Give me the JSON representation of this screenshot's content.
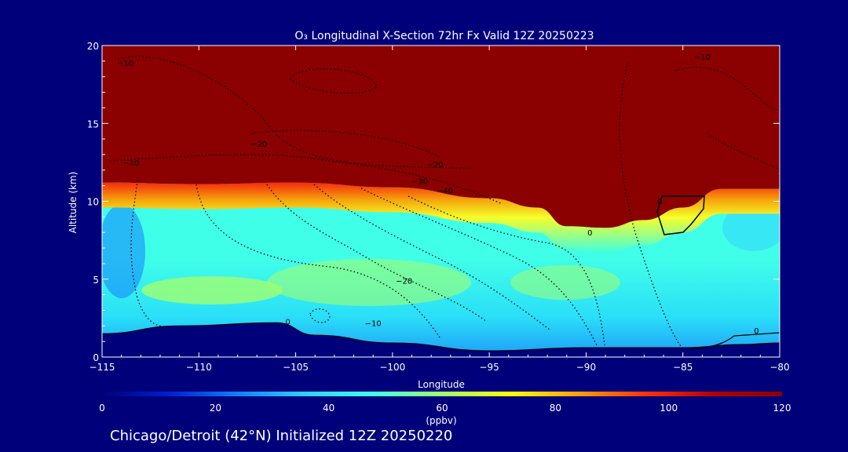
{
  "chart_data": {
    "type": "heatmap",
    "title": "O₃ Longitudinal X-Section 72hr  Fx Valid 12Z 20250223",
    "xlabel": "Longitude",
    "ylabel": "Altitude (km)",
    "xlim": [
      -115,
      -80
    ],
    "ylim": [
      0,
      20
    ],
    "x_ticks": [
      -115,
      -110,
      -105,
      -100,
      -95,
      -90,
      -85,
      -80
    ],
    "x_tick_labels": [
      "−115",
      "−110",
      "−105",
      "−100",
      "−95",
      "−90",
      "−85",
      "−80"
    ],
    "y_ticks": [
      0,
      5,
      10,
      15,
      20
    ],
    "y_tick_labels": [
      "0",
      "5",
      "10",
      "15",
      "20"
    ],
    "colorbar": {
      "label": "(ppbv)",
      "range": [
        0,
        120
      ],
      "ticks": [
        0,
        20,
        40,
        60,
        80,
        100,
        120
      ],
      "tick_labels": [
        "0",
        "20",
        "40",
        "60",
        "80",
        "100",
        "120"
      ],
      "colors": [
        "#00007a",
        "#0020d0",
        "#1080ff",
        "#30d0ff",
        "#40ffe8",
        "#a0ff70",
        "#ffff00",
        "#ffa000",
        "#ff3000",
        "#b00000",
        "#8b0000"
      ]
    },
    "tropopause_altitude_km": [
      {
        "lon": -115,
        "alt": 11.2
      },
      {
        "lon": -110,
        "alt": 11.1
      },
      {
        "lon": -105,
        "alt": 11.2
      },
      {
        "lon": -100,
        "alt": 10.9
      },
      {
        "lon": -95,
        "alt": 10.2
      },
      {
        "lon": -92.5,
        "alt": 9.6
      },
      {
        "lon": -91,
        "alt": 8.4
      },
      {
        "lon": -89,
        "alt": 8.3
      },
      {
        "lon": -87,
        "alt": 8.8
      },
      {
        "lon": -85,
        "alt": 9.6
      },
      {
        "lon": -83,
        "alt": 10.8
      },
      {
        "lon": -80,
        "alt": 10.8
      }
    ],
    "terrain_altitude_km": [
      {
        "lon": -115,
        "alt": 1.5
      },
      {
        "lon": -111,
        "alt": 2.0
      },
      {
        "lon": -106,
        "alt": 2.2
      },
      {
        "lon": -104,
        "alt": 1.4
      },
      {
        "lon": -100,
        "alt": 0.9
      },
      {
        "lon": -95,
        "alt": 0.4
      },
      {
        "lon": -90,
        "alt": 0.6
      },
      {
        "lon": -85,
        "alt": 0.6
      },
      {
        "lon": -82,
        "alt": 0.8
      },
      {
        "lon": -80,
        "alt": 0.9
      }
    ],
    "contour_labels": [
      {
        "text": "−10",
        "lon": -113.8,
        "alt": 18.7
      },
      {
        "text": "−10",
        "lon": -113.5,
        "alt": 12.3
      },
      {
        "text": "−20",
        "lon": -106.9,
        "alt": 13.5
      },
      {
        "text": "−20",
        "lon": -97.8,
        "alt": 12.2
      },
      {
        "text": "−30",
        "lon": -98.6,
        "alt": 11.1
      },
      {
        "text": "−40",
        "lon": -97.3,
        "alt": 10.5
      },
      {
        "text": "−20",
        "lon": -99.4,
        "alt": 4.7
      },
      {
        "text": "−10",
        "lon": -101.0,
        "alt": 2.0
      },
      {
        "text": "−10",
        "lon": -84.0,
        "alt": 19.1
      },
      {
        "text": "0",
        "lon": -105.4,
        "alt": 2.1
      },
      {
        "text": "0",
        "lon": -89.8,
        "alt": 7.8
      },
      {
        "text": "0",
        "lon": -86.2,
        "alt": 9.8
      },
      {
        "text": "0",
        "lon": -81.2,
        "alt": 1.5
      }
    ]
  },
  "footer": {
    "caption": "Chicago/Detroit (42°N) Initialized 12Z 20250220"
  }
}
